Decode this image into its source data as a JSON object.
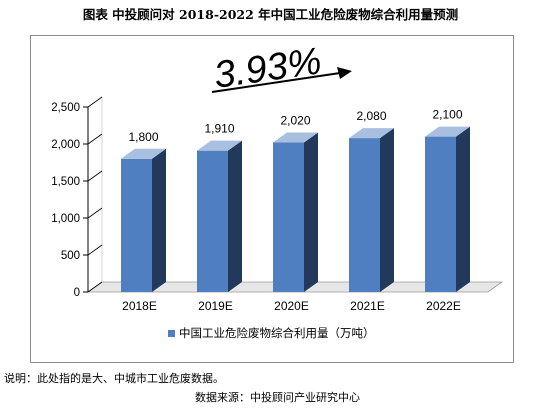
{
  "title": "图表    中投顾问对 2018-2022 年中国工业危险废物综合利用量预测",
  "growth_label": "3.93%",
  "note": "说明：此处指的是大、中城市工业危废数据。",
  "source": "数据来源：中投顾问产业研究中心",
  "colors": {
    "bar_front": "#4f7fc0",
    "bar_side": "#22395c",
    "bar_top": "#a9bfe0",
    "floor": "#e6e6e6"
  },
  "chart_data": {
    "type": "bar",
    "categories": [
      "2018E",
      "2019E",
      "2020E",
      "2021E",
      "2022E"
    ],
    "series": [
      {
        "name": "中国工业危险废物综合利用量（万吨）",
        "values": [
          1800,
          1910,
          2020,
          2080,
          2100
        ]
      }
    ],
    "data_labels": [
      "1,800",
      "1,910",
      "2,020",
      "2,080",
      "2,100"
    ],
    "yticks": [
      "0",
      "500",
      "1,000",
      "1,500",
      "2,000",
      "2,500"
    ],
    "ylim": [
      0,
      2500
    ],
    "grid": false,
    "legend_position": "bottom"
  }
}
